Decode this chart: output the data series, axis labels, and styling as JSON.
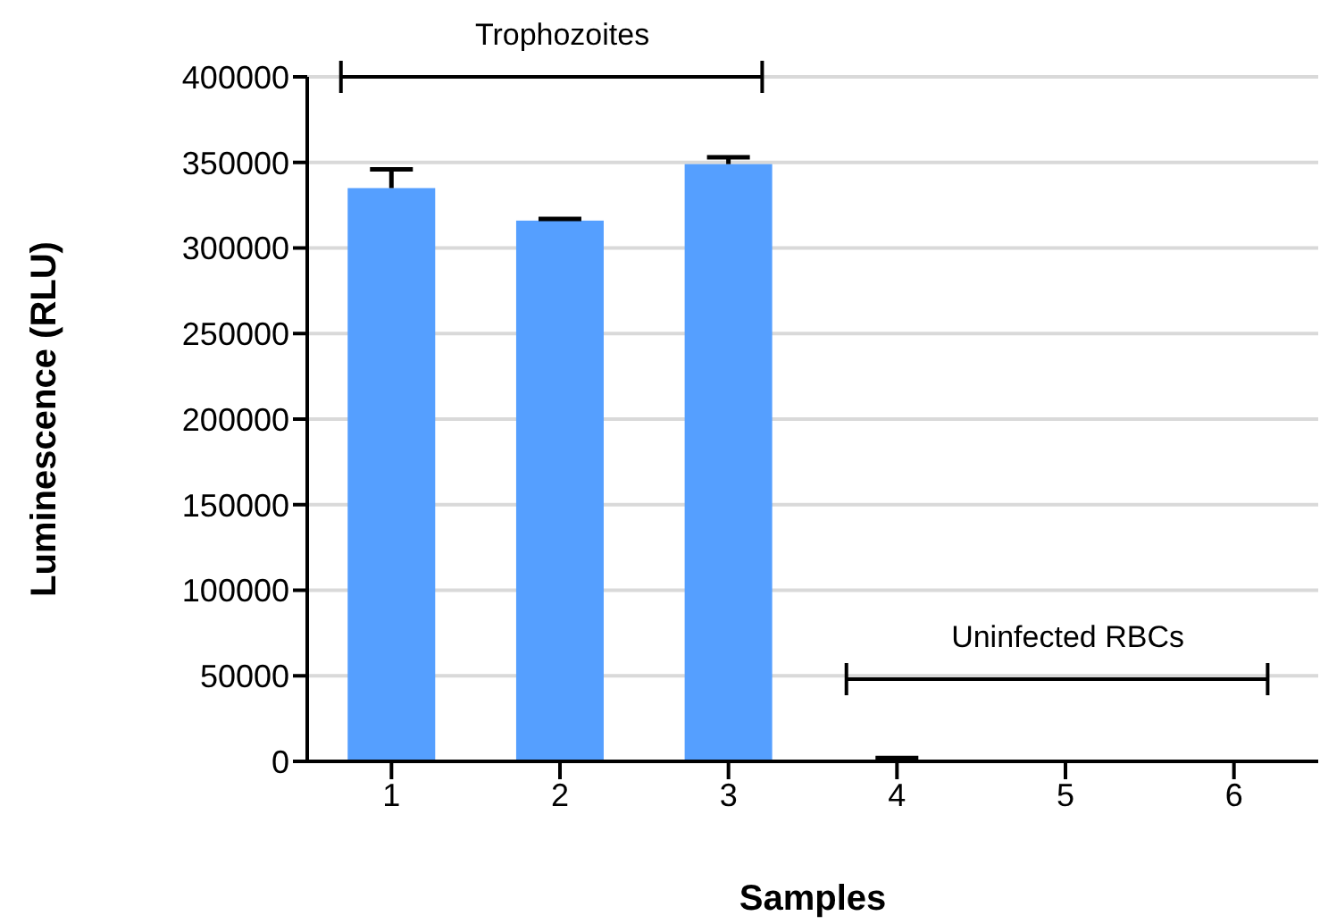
{
  "chart_data": {
    "type": "bar",
    "xlabel": "Samples",
    "ylabel": "Luminescence (RLU)",
    "categories": [
      "1",
      "2",
      "3",
      "4",
      "5",
      "6"
    ],
    "values": [
      335000,
      316000,
      349000,
      1000,
      0,
      1000
    ],
    "errors": [
      11000,
      1000,
      4000,
      1000,
      null,
      null
    ],
    "color": "#559fff",
    "ylim": [
      0,
      400000
    ],
    "yticks": [
      0,
      50000,
      100000,
      150000,
      200000,
      250000,
      300000,
      350000,
      400000
    ],
    "grid": "y",
    "legend": false,
    "annotations": [
      "Trophozoites",
      "Uninfected RBCs"
    ]
  }
}
